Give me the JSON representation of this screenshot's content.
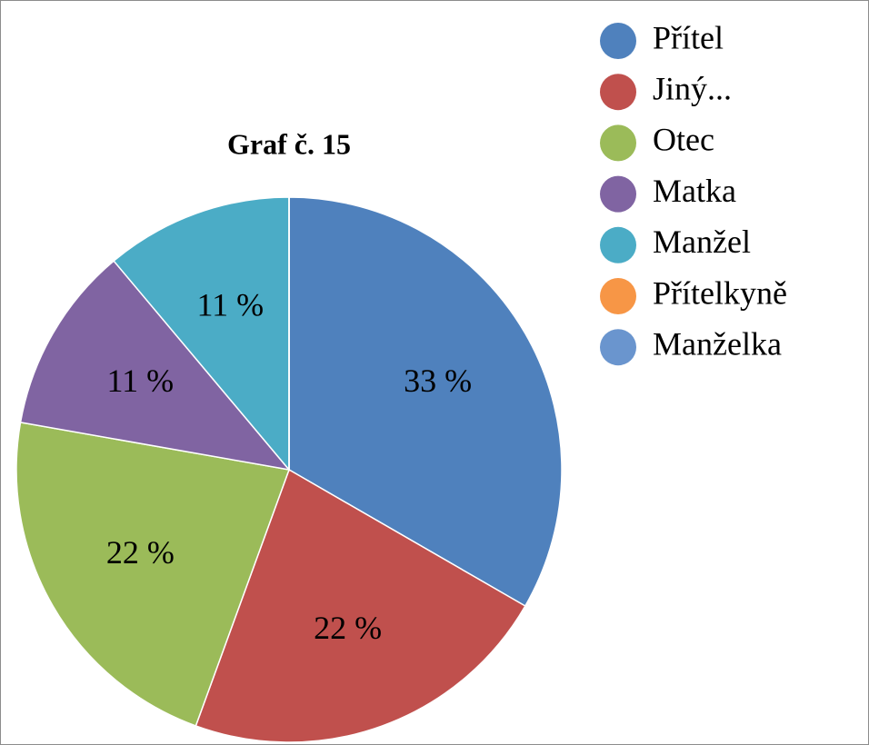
{
  "chart_data": {
    "type": "pie",
    "title": "Graf č. 15",
    "categories": [
      "Přítel",
      "Jiný...",
      "Otec",
      "Matka",
      "Manžel",
      "Přítelkyně",
      "Manželka"
    ],
    "values": [
      33,
      22,
      22,
      11,
      11,
      0,
      0
    ],
    "value_labels": [
      "33 %",
      "22 %",
      "22 %",
      "11 %",
      "11 %",
      null,
      null
    ],
    "colors": [
      "#4f81bd",
      "#c0504d",
      "#9bbb59",
      "#8064a2",
      "#4bacc6",
      "#f79646",
      "#6a95ce"
    ],
    "legend": "right"
  }
}
